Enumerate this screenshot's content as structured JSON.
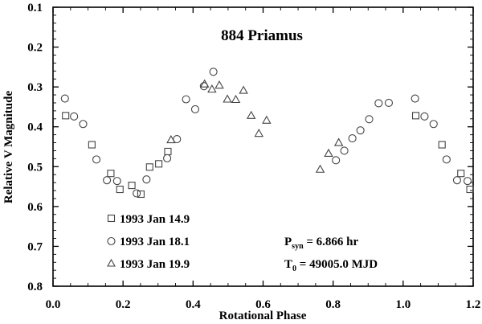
{
  "chart_data": {
    "type": "scatter",
    "title": "884 Priamus",
    "xlabel": "Rotational Phase",
    "ylabel": "Relative V Magnitude",
    "xlim": [
      0.0,
      1.2
    ],
    "ylim": [
      0.1,
      0.8
    ],
    "y_inverted": true,
    "grid": false,
    "x_ticks": [
      "0.0",
      "0.2",
      "0.4",
      "0.6",
      "0.8",
      "1.0",
      "1.2"
    ],
    "y_ticks": [
      "0.1",
      "0.2",
      "0.3",
      "0.4",
      "0.5",
      "0.6",
      "0.7",
      "0.8"
    ],
    "x_minor_step": 0.05,
    "y_minor_step": 0.02,
    "legend_position": "lower-left inside",
    "series": [
      {
        "name": "1993 Jan 14.9",
        "marker": "square",
        "points": [
          [
            0.036,
            0.372
          ],
          [
            0.111,
            0.445
          ],
          [
            0.165,
            0.517
          ],
          [
            0.191,
            0.557
          ],
          [
            0.225,
            0.547
          ],
          [
            0.251,
            0.569
          ],
          [
            0.276,
            0.501
          ],
          [
            0.302,
            0.493
          ],
          [
            0.328,
            0.462
          ],
          [
            1.036,
            0.372
          ],
          [
            1.111,
            0.445
          ],
          [
            1.165,
            0.517
          ],
          [
            1.191,
            0.557
          ]
        ]
      },
      {
        "name": "1993 Jan 18.1",
        "marker": "circle",
        "points": [
          [
            0.034,
            0.329
          ],
          [
            0.06,
            0.374
          ],
          [
            0.086,
            0.393
          ],
          [
            0.124,
            0.482
          ],
          [
            0.154,
            0.534
          ],
          [
            0.183,
            0.536
          ],
          [
            0.239,
            0.567
          ],
          [
            0.267,
            0.532
          ],
          [
            0.326,
            0.479
          ],
          [
            0.354,
            0.431
          ],
          [
            0.38,
            0.331
          ],
          [
            0.406,
            0.356
          ],
          [
            0.431,
            0.298
          ],
          [
            0.458,
            0.262
          ],
          [
            0.808,
            0.484
          ],
          [
            0.832,
            0.46
          ],
          [
            0.855,
            0.429
          ],
          [
            0.878,
            0.409
          ],
          [
            0.903,
            0.381
          ],
          [
            0.93,
            0.341
          ],
          [
            0.959,
            0.34
          ],
          [
            1.034,
            0.329
          ],
          [
            1.061,
            0.374
          ],
          [
            1.087,
            0.393
          ],
          [
            1.124,
            0.482
          ],
          [
            1.154,
            0.534
          ],
          [
            1.184,
            0.536
          ]
        ]
      },
      {
        "name": "1993 Jan 19.9",
        "marker": "triangle",
        "points": [
          [
            0.337,
            0.433
          ],
          [
            0.433,
            0.293
          ],
          [
            0.454,
            0.306
          ],
          [
            0.475,
            0.296
          ],
          [
            0.498,
            0.331
          ],
          [
            0.522,
            0.332
          ],
          [
            0.544,
            0.309
          ],
          [
            0.566,
            0.372
          ],
          [
            0.588,
            0.417
          ],
          [
            0.61,
            0.384
          ],
          [
            0.763,
            0.507
          ],
          [
            0.787,
            0.467
          ],
          [
            0.816,
            0.44
          ]
        ]
      }
    ],
    "annotations": [
      {
        "text_main": "P",
        "text_sub": "syn",
        "text_rest": " = 6.866 hr"
      },
      {
        "text_main": "T",
        "text_sub": "0",
        "text_rest": " = 49005.0 MJD"
      }
    ]
  }
}
